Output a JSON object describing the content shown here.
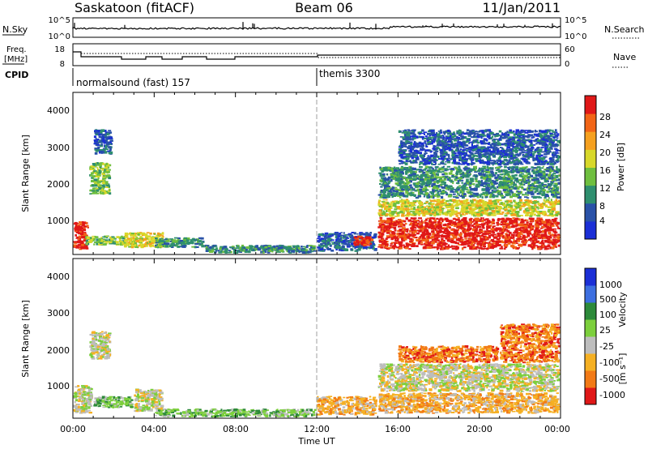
{
  "header": {
    "radar": "Saskatoon (fitACF)",
    "beam": "Beam 06",
    "date": "11/Jan/2011"
  },
  "nsky_panel": {
    "left_label": "N.Sky",
    "left_ticks": [
      "10^5",
      "10^0"
    ],
    "right_label": "N.Search",
    "right_ticks": [
      "10^5",
      "10^0"
    ]
  },
  "freq_panel": {
    "left_label_line1": "Freq.",
    "left_label_line2": "[MHz]",
    "left_ticks": [
      "18",
      "8"
    ],
    "right_label": "Nave",
    "right_ticks": [
      "60",
      "0"
    ]
  },
  "cpid_panel": {
    "label": "CPID",
    "programs": [
      "normalsound (fast) 157",
      "themis 3300"
    ]
  },
  "time_axis": {
    "label": "Time UT",
    "ticks": [
      "00:00",
      "04:00",
      "08:00",
      "12:00",
      "16:00",
      "20:00",
      "00:00"
    ]
  },
  "power_panel": {
    "ylabel": "Slant Range [km]",
    "yticks": [
      "1000",
      "2000",
      "3000",
      "4000"
    ],
    "colorbar_label": "Power [dB]",
    "colorbar_ticks": [
      "4",
      "8",
      "12",
      "16",
      "20",
      "24",
      "28"
    ],
    "colors": [
      "#1b2fd6",
      "#2a52a8",
      "#2f8f6f",
      "#6fbf3f",
      "#d8d82a",
      "#f5a01f",
      "#f26516",
      "#e01818"
    ]
  },
  "velocity_panel": {
    "ylabel": "Slant Range [km]",
    "yticks": [
      "1000",
      "2000",
      "3000",
      "4000"
    ],
    "colorbar_label": "Velocity",
    "colorbar_unit": "[m s⁻¹]",
    "colorbar_ticks": [
      "1000",
      "500",
      "100",
      "25",
      "-25",
      "-100",
      "-500",
      "-1000"
    ],
    "colors": [
      "#1b2fd6",
      "#3d6fe0",
      "#2d8a3a",
      "#7ccf3c",
      "#bdbdbd",
      "#f5b023",
      "#f27a16",
      "#e01818"
    ]
  },
  "chart_data": [
    {
      "type": "heatmap",
      "title": "Power",
      "x_range_hours": [
        0,
        24
      ],
      "y_range_km": [
        180,
        4600
      ],
      "ylabel": "Slant Range [km]",
      "colorbar": "Power [dB]",
      "scatter_regions": [
        {
          "t0": 0.0,
          "t1": 0.8,
          "r0": 300,
          "r1": 1100,
          "level": 7
        },
        {
          "t0": 0.6,
          "t1": 2.6,
          "r0": 420,
          "r1": 700,
          "level": 3
        },
        {
          "t0": 0.8,
          "t1": 1.9,
          "r0": 1800,
          "r1": 2700,
          "level": 3
        },
        {
          "t0": 1.0,
          "t1": 2.0,
          "r0": 2900,
          "r1": 3600,
          "level": 1
        },
        {
          "t0": 2.5,
          "t1": 4.5,
          "r0": 350,
          "r1": 800,
          "level": 4
        },
        {
          "t0": 4.0,
          "t1": 6.5,
          "r0": 350,
          "r1": 650,
          "level": 2
        },
        {
          "t0": 6.5,
          "t1": 12.0,
          "r0": 200,
          "r1": 450,
          "level": 2
        },
        {
          "t0": 12.0,
          "t1": 15.0,
          "r0": 250,
          "r1": 800,
          "level": 1
        },
        {
          "t0": 13.8,
          "t1": 14.8,
          "r0": 400,
          "r1": 700,
          "level": 7
        },
        {
          "t0": 15.0,
          "t1": 24.0,
          "r0": 300,
          "r1": 1200,
          "level": 7
        },
        {
          "t0": 15.0,
          "t1": 24.0,
          "r0": 1200,
          "r1": 1700,
          "level": 4
        },
        {
          "t0": 15.0,
          "t1": 24.0,
          "r0": 1700,
          "r1": 2600,
          "level": 2
        },
        {
          "t0": 16.0,
          "t1": 24.0,
          "r0": 2600,
          "r1": 3600,
          "level": 1
        }
      ]
    },
    {
      "type": "heatmap",
      "title": "Velocity",
      "x_range_hours": [
        0,
        24
      ],
      "y_range_km": [
        180,
        4600
      ],
      "ylabel": "Slant Range [km]",
      "colorbar": "Velocity [m s^-1]",
      "scatter_regions": [
        {
          "t0": 0.0,
          "t1": 1.0,
          "r0": 300,
          "r1": 1100,
          "level": 4
        },
        {
          "t0": 0.8,
          "t1": 1.9,
          "r0": 1800,
          "r1": 2600,
          "level": 4
        },
        {
          "t0": 1.0,
          "t1": 3.0,
          "r0": 450,
          "r1": 800,
          "level": 3
        },
        {
          "t0": 3.0,
          "t1": 4.5,
          "r0": 350,
          "r1": 1000,
          "level": 4
        },
        {
          "t0": 4.0,
          "t1": 12.0,
          "r0": 200,
          "r1": 450,
          "level": 3
        },
        {
          "t0": 12.0,
          "t1": 15.0,
          "r0": 250,
          "r1": 800,
          "level": 5
        },
        {
          "t0": 15.0,
          "t1": 24.0,
          "r0": 300,
          "r1": 900,
          "level": 5
        },
        {
          "t0": 15.0,
          "t1": 24.0,
          "r0": 900,
          "r1": 1700,
          "level": 4
        },
        {
          "t0": 16.0,
          "t1": 21.0,
          "r0": 1700,
          "r1": 2200,
          "level": 6
        },
        {
          "t0": 21.0,
          "t1": 24.0,
          "r0": 1700,
          "r1": 2800,
          "level": 6
        }
      ]
    }
  ]
}
